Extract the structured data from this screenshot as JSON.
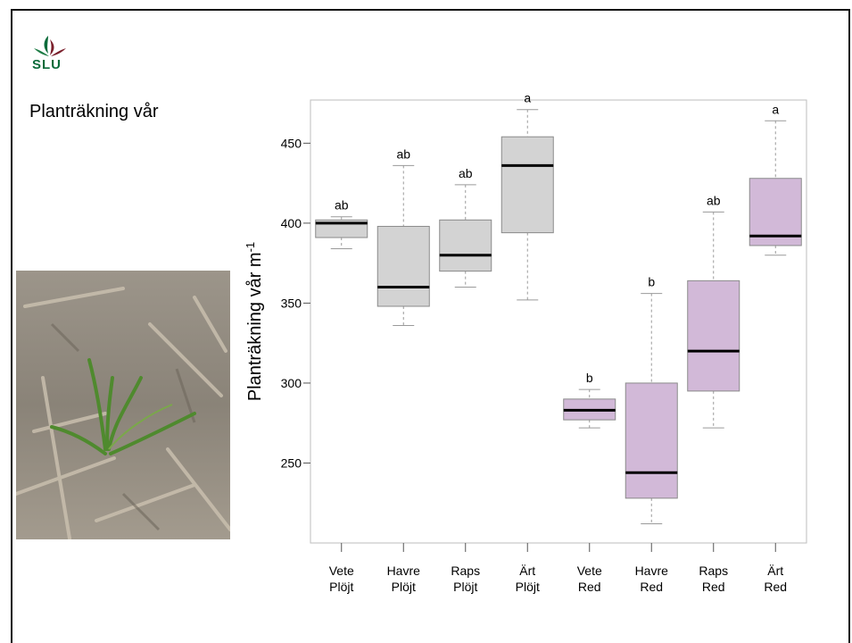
{
  "logo": {
    "text": "SLU",
    "colors": [
      "#0b6b3a",
      "#7a1f2b",
      "#1d7c45"
    ]
  },
  "slide": {
    "title": "Planträkning vår"
  },
  "photo": {
    "subject": "seedling-in-stubble-photo"
  },
  "chart_data": {
    "type": "box",
    "ylabel": "Planträkning vår m",
    "ylabel_superscript": "-1",
    "xlabel": "",
    "ylim": [
      200,
      477
    ],
    "yticks": [
      250,
      300,
      350,
      400,
      450
    ],
    "grid": false,
    "categories": [
      [
        "Vete",
        "Plöjt"
      ],
      [
        "Havre",
        "Plöjt"
      ],
      [
        "Raps",
        "Plöjt"
      ],
      [
        "Ärt",
        "Plöjt"
      ],
      [
        "Vete",
        "Red"
      ],
      [
        "Havre",
        "Red"
      ],
      [
        "Raps",
        "Red"
      ],
      [
        "Ärt",
        "Red"
      ]
    ],
    "boxes": [
      {
        "min": 384,
        "q1": 391,
        "median": 400,
        "q3": 402,
        "max": 404,
        "letter": "ab",
        "color": "#d3d3d3"
      },
      {
        "min": 336,
        "q1": 348,
        "median": 360,
        "q3": 398,
        "max": 436,
        "letter": "ab",
        "color": "#d3d3d3"
      },
      {
        "min": 360,
        "q1": 370,
        "median": 380,
        "q3": 402,
        "max": 424,
        "letter": "ab",
        "color": "#d3d3d3"
      },
      {
        "min": 352,
        "q1": 394,
        "median": 436,
        "q3": 454,
        "max": 471,
        "letter": "a",
        "color": "#d3d3d3"
      },
      {
        "min": 272,
        "q1": 277,
        "median": 283,
        "q3": 290,
        "max": 296,
        "letter": "b",
        "color": "#d2b9d8"
      },
      {
        "min": 212,
        "q1": 228,
        "median": 244,
        "q3": 300,
        "max": 356,
        "letter": "b",
        "color": "#d2b9d8"
      },
      {
        "min": 272,
        "q1": 295,
        "median": 320,
        "q3": 364,
        "max": 407,
        "letter": "ab",
        "color": "#d2b9d8"
      },
      {
        "min": 380,
        "q1": 386,
        "median": 392,
        "q3": 428,
        "max": 464,
        "letter": "a",
        "color": "#d2b9d8"
      }
    ]
  }
}
